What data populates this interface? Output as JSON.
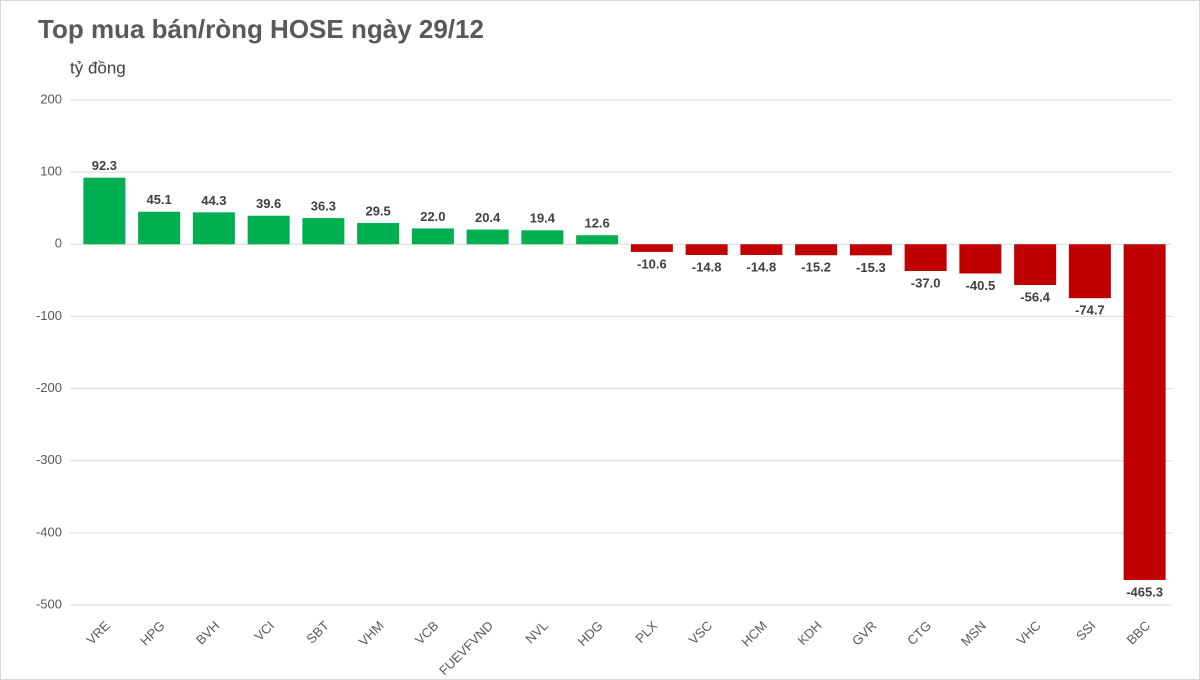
{
  "chart_data": {
    "type": "bar",
    "title": "Top mua bán/ròng HOSE ngày 29/12",
    "y_axis_label": "tỷ đồng",
    "categories": [
      "VRE",
      "HPG",
      "BVH",
      "VCI",
      "SBT",
      "VHM",
      "VCB",
      "FUEVFVND",
      "NVL",
      "HDG",
      "PLX",
      "VSC",
      "HCM",
      "KDH",
      "GVR",
      "CTG",
      "MSN",
      "VHC",
      "SSI",
      "BBC"
    ],
    "values": [
      92.3,
      45.1,
      44.3,
      39.6,
      36.3,
      29.5,
      22.0,
      20.4,
      19.4,
      12.6,
      -10.6,
      -14.8,
      -14.8,
      -15.2,
      -15.3,
      -37.0,
      -40.5,
      -56.4,
      -74.7,
      -465.3
    ],
    "value_labels": [
      "92.3",
      "45.1",
      "44.3",
      "39.6",
      "36.3",
      "29.5",
      "22.0",
      "20.4",
      "19.4",
      "12.6",
      "-10.6",
      "-14.8",
      "-14.8",
      "-15.2",
      "-15.3",
      "-37.0",
      "-40.5",
      "-56.4",
      "-74.7",
      "-465.3"
    ],
    "positive_color": "#00b050",
    "negative_color": "#c00000",
    "ylim": [
      -500,
      200
    ],
    "yticks": [
      -500,
      -400,
      -300,
      -200,
      -100,
      0,
      100,
      200
    ],
    "grid": true
  }
}
